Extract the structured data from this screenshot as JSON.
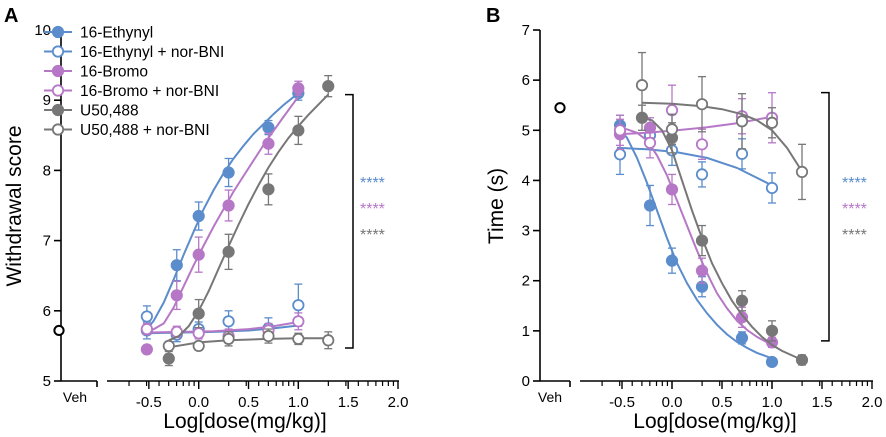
{
  "colors": {
    "ethynyl": "#5b8ccb",
    "bromo": "#b678c6",
    "u50": "#777777",
    "veh": "#000000",
    "axis": "#000000"
  },
  "chart_data": [
    {
      "panel": "A",
      "type": "scatter",
      "title": "",
      "xlabel": "Log[dose(mg/kg)]",
      "ylabel": "Withdrawal score",
      "xlim": [
        -0.9,
        2.0
      ],
      "ylim": [
        5,
        10
      ],
      "xticks": [
        -0.5,
        0.0,
        0.5,
        1.0,
        1.5,
        2.0
      ],
      "xtick_labels": [
        "-0.5",
        "0.0",
        "0.5",
        "1.0",
        "1.5",
        "2.0"
      ],
      "yticks": [
        5,
        6,
        7,
        8,
        9,
        10
      ],
      "ytick_labels": [
        "5",
        "6",
        "7",
        "8",
        "9",
        "10"
      ],
      "veh_label": "Veh",
      "veh": {
        "y": 5.72,
        "err": 0.05
      },
      "legend": [
        {
          "label": "16-Ethynyl",
          "series": "ethynyl",
          "filled": true
        },
        {
          "label": "16-Ethynyl + nor-BNI",
          "series": "ethynyl",
          "filled": false
        },
        {
          "label": "16-Bromo",
          "series": "bromo",
          "filled": true
        },
        {
          "label": "16-Bromo + nor-BNI",
          "series": "bromo",
          "filled": false
        },
        {
          "label": "U50,488",
          "series": "u50",
          "filled": true
        },
        {
          "label": "U50,488 + nor-BNI",
          "series": "u50",
          "filled": false
        }
      ],
      "significance": [
        {
          "text": "****",
          "series": "ethynyl"
        },
        {
          "text": "****",
          "series": "bromo"
        },
        {
          "text": "****",
          "series": "u50"
        }
      ],
      "bracket": {
        "y_top": 9.08,
        "y_bottom": 5.47
      },
      "series": [
        {
          "name": "16-Ethynyl",
          "color_key": "ethynyl",
          "filled": true,
          "x": [
            -0.52,
            -0.22,
            0.0,
            0.3,
            0.7,
            1.0
          ],
          "y": [
            5.72,
            6.65,
            7.35,
            7.97,
            8.61,
            9.1
          ],
          "err": [
            0.12,
            0.22,
            0.2,
            0.2,
            0.1,
            0.1
          ],
          "fit_x": [
            -0.55,
            -0.45,
            -0.35,
            -0.25,
            -0.15,
            -0.05,
            0.05,
            0.15,
            0.25,
            0.35,
            0.45,
            0.55,
            0.65,
            0.75,
            0.85,
            1.0
          ],
          "fit_y": [
            5.68,
            5.86,
            6.12,
            6.45,
            6.8,
            7.13,
            7.45,
            7.72,
            7.96,
            8.17,
            8.35,
            8.52,
            8.66,
            8.8,
            8.93,
            9.1
          ]
        },
        {
          "name": "16-Ethynyl + nor-BNI",
          "color_key": "ethynyl",
          "filled": false,
          "x": [
            -0.52,
            -0.22,
            0.0,
            0.3,
            0.7,
            1.0
          ],
          "y": [
            5.92,
            5.66,
            5.74,
            5.85,
            5.75,
            6.08
          ],
          "err": [
            0.15,
            0.1,
            0.1,
            0.15,
            0.15,
            0.3
          ],
          "fit_x": [
            -0.55,
            -0.2,
            0.15,
            0.5,
            0.75,
            1.0
          ],
          "fit_y": [
            5.68,
            5.69,
            5.7,
            5.72,
            5.75,
            5.79
          ]
        },
        {
          "name": "16-Bromo",
          "color_key": "bromo",
          "filled": true,
          "x": [
            -0.52,
            -0.22,
            0.0,
            0.3,
            0.7,
            1.0
          ],
          "y": [
            5.45,
            6.22,
            6.8,
            7.5,
            8.38,
            9.17
          ],
          "err": [
            0.05,
            0.2,
            0.25,
            0.22,
            0.15,
            0.1
          ],
          "fit_x": [
            -0.55,
            -0.45,
            -0.35,
            -0.25,
            -0.15,
            -0.05,
            0.05,
            0.15,
            0.25,
            0.35,
            0.45,
            0.55,
            0.65,
            0.75,
            0.85,
            1.0
          ],
          "fit_y": [
            5.72,
            5.74,
            5.82,
            6.05,
            6.35,
            6.65,
            6.93,
            7.2,
            7.45,
            7.7,
            7.92,
            8.14,
            8.36,
            8.56,
            8.76,
            9.05
          ]
        },
        {
          "name": "16-Bromo + nor-BNI",
          "color_key": "bromo",
          "filled": false,
          "x": [
            -0.52,
            -0.22,
            0.0,
            0.3,
            0.7,
            1.0
          ],
          "y": [
            5.74,
            5.7,
            5.68,
            5.64,
            5.72,
            5.85
          ],
          "err": [
            0.08,
            0.08,
            0.08,
            0.1,
            0.1,
            0.12
          ],
          "fit_x": [
            -0.55,
            -0.2,
            0.15,
            0.5,
            0.75,
            1.0
          ],
          "fit_y": [
            5.69,
            5.7,
            5.71,
            5.74,
            5.78,
            5.84
          ]
        },
        {
          "name": "U50,488",
          "color_key": "u50",
          "filled": true,
          "x": [
            -0.3,
            0.0,
            0.3,
            0.7,
            1.0,
            1.3
          ],
          "y": [
            5.32,
            5.96,
            6.84,
            7.73,
            8.57,
            9.2
          ],
          "err": [
            0.1,
            0.2,
            0.25,
            0.22,
            0.2,
            0.15
          ],
          "fit_x": [
            -0.3,
            -0.2,
            -0.1,
            0.0,
            0.1,
            0.2,
            0.3,
            0.4,
            0.5,
            0.6,
            0.7,
            0.8,
            0.9,
            1.0,
            1.1,
            1.3
          ],
          "fit_y": [
            5.58,
            5.64,
            5.78,
            6.0,
            6.28,
            6.6,
            6.92,
            7.23,
            7.52,
            7.79,
            8.04,
            8.26,
            8.46,
            8.63,
            8.79,
            9.08
          ]
        },
        {
          "name": "U50,488 + nor-BNI",
          "color_key": "u50",
          "filled": false,
          "x": [
            -0.3,
            0.0,
            0.3,
            0.7,
            1.0,
            1.3
          ],
          "y": [
            5.5,
            5.5,
            5.6,
            5.64,
            5.6,
            5.58
          ],
          "err": [
            0.06,
            0.06,
            0.1,
            0.1,
            0.08,
            0.12
          ],
          "fit_x": [
            -0.3,
            0.0,
            0.3,
            0.7,
            1.0,
            1.3
          ],
          "fit_y": [
            5.48,
            5.55,
            5.58,
            5.6,
            5.61,
            5.61
          ]
        }
      ]
    },
    {
      "panel": "B",
      "type": "scatter",
      "title": "",
      "xlabel": "Log[dose(mg/kg)]",
      "ylabel": "Time (s)",
      "xlim": [
        -0.9,
        2.0
      ],
      "ylim": [
        0,
        7
      ],
      "xticks": [
        -0.5,
        0.0,
        0.5,
        1.0,
        1.5,
        2.0
      ],
      "xtick_labels": [
        "-0.5",
        "0.0",
        "0.5",
        "1.0",
        "1.5",
        "2.0"
      ],
      "yticks": [
        0,
        1,
        2,
        3,
        4,
        5,
        6,
        7
      ],
      "ytick_labels": [
        "0",
        "1",
        "2",
        "3",
        "4",
        "5",
        "6",
        "7"
      ],
      "veh_label": "Veh",
      "veh": {
        "y": 5.45,
        "err": 0.1
      },
      "significance": [
        {
          "text": "****",
          "series": "ethynyl"
        },
        {
          "text": "****",
          "series": "bromo"
        },
        {
          "text": "****",
          "series": "u50"
        }
      ],
      "bracket": {
        "y_top": 5.75,
        "y_bottom": 0.8
      },
      "series": [
        {
          "name": "16-Ethynyl",
          "color_key": "ethynyl",
          "filled": true,
          "x": [
            -0.52,
            -0.22,
            0.0,
            0.3,
            0.7,
            1.0
          ],
          "y": [
            5.1,
            3.5,
            2.4,
            1.88,
            0.86,
            0.38
          ],
          "err": [
            0.2,
            0.4,
            0.25,
            0.2,
            0.12,
            0.05
          ],
          "fit_x": [
            -0.55,
            -0.45,
            -0.35,
            -0.25,
            -0.15,
            -0.05,
            0.05,
            0.15,
            0.25,
            0.35,
            0.45,
            0.55,
            0.65,
            0.75,
            0.85,
            1.0
          ],
          "fit_y": [
            5.1,
            4.85,
            4.45,
            3.95,
            3.4,
            2.85,
            2.35,
            1.95,
            1.62,
            1.35,
            1.12,
            0.93,
            0.78,
            0.66,
            0.56,
            0.45
          ]
        },
        {
          "name": "16-Ethynyl + nor-BNI",
          "color_key": "ethynyl",
          "filled": false,
          "x": [
            -0.52,
            -0.22,
            0.0,
            0.3,
            0.7,
            1.0
          ],
          "y": [
            4.52,
            4.9,
            4.6,
            4.12,
            4.53,
            3.85
          ],
          "err": [
            0.4,
            0.2,
            0.3,
            0.25,
            0.3,
            0.3
          ],
          "fit_x": [
            -0.55,
            -0.25,
            0.05,
            0.35,
            0.65,
            1.0
          ],
          "fit_y": [
            4.65,
            4.62,
            4.56,
            4.45,
            4.25,
            3.9
          ]
        },
        {
          "name": "16-Bromo",
          "color_key": "bromo",
          "filled": true,
          "x": [
            -0.52,
            -0.22,
            0.0,
            0.3,
            0.7,
            1.0
          ],
          "y": [
            4.92,
            5.05,
            3.82,
            2.2,
            1.27,
            0.77
          ],
          "err": [
            0.3,
            0.2,
            0.3,
            0.25,
            0.2,
            0.1
          ],
          "fit_x": [
            -0.55,
            -0.45,
            -0.35,
            -0.25,
            -0.15,
            -0.05,
            0.05,
            0.15,
            0.25,
            0.35,
            0.45,
            0.55,
            0.65,
            0.75,
            0.85,
            1.0
          ],
          "fit_y": [
            5.05,
            5.02,
            4.95,
            4.8,
            4.5,
            4.1,
            3.6,
            3.1,
            2.6,
            2.15,
            1.75,
            1.45,
            1.2,
            1.02,
            0.88,
            0.72
          ]
        },
        {
          "name": "16-Bromo + nor-BNI",
          "color_key": "bromo",
          "filled": false,
          "x": [
            -0.52,
            -0.22,
            0.0,
            0.3,
            0.7,
            1.0
          ],
          "y": [
            5.0,
            4.75,
            5.4,
            4.72,
            5.28,
            5.25
          ],
          "err": [
            0.3,
            0.3,
            0.5,
            0.3,
            0.35,
            0.5
          ],
          "fit_x": [
            -0.55,
            -0.25,
            0.05,
            0.35,
            0.65,
            1.0
          ],
          "fit_y": [
            4.92,
            4.95,
            5.0,
            5.06,
            5.14,
            5.27
          ]
        },
        {
          "name": "U50,488",
          "color_key": "u50",
          "filled": true,
          "x": [
            -0.3,
            0.0,
            0.3,
            0.7,
            1.0,
            1.3
          ],
          "y": [
            5.25,
            4.85,
            2.8,
            1.6,
            1.0,
            0.42
          ],
          "err": [
            0.25,
            0.3,
            0.3,
            0.2,
            0.2,
            0.1
          ],
          "fit_x": [
            -0.3,
            -0.2,
            -0.1,
            0.0,
            0.1,
            0.2,
            0.3,
            0.4,
            0.5,
            0.6,
            0.7,
            0.8,
            0.9,
            1.0,
            1.1,
            1.3
          ],
          "fit_y": [
            5.25,
            5.2,
            5.0,
            4.6,
            4.0,
            3.4,
            2.85,
            2.35,
            1.95,
            1.6,
            1.32,
            1.08,
            0.88,
            0.72,
            0.6,
            0.42
          ]
        },
        {
          "name": "U50,488 + nor-BNI",
          "color_key": "u50",
          "filled": false,
          "x": [
            -0.3,
            0.0,
            0.3,
            0.7,
            1.0,
            1.3
          ],
          "y": [
            5.9,
            5.02,
            5.52,
            5.18,
            5.15,
            4.17
          ],
          "err": [
            0.65,
            0.3,
            0.55,
            0.55,
            0.3,
            0.55
          ],
          "fit_x": [
            -0.3,
            0.0,
            0.3,
            0.5,
            0.7,
            0.85,
            1.0,
            1.15,
            1.3
          ],
          "fit_y": [
            5.55,
            5.53,
            5.48,
            5.42,
            5.32,
            5.2,
            5.0,
            4.65,
            4.18
          ]
        }
      ]
    }
  ],
  "panels": {
    "a": {
      "letter": "A"
    },
    "b": {
      "letter": "B"
    }
  }
}
